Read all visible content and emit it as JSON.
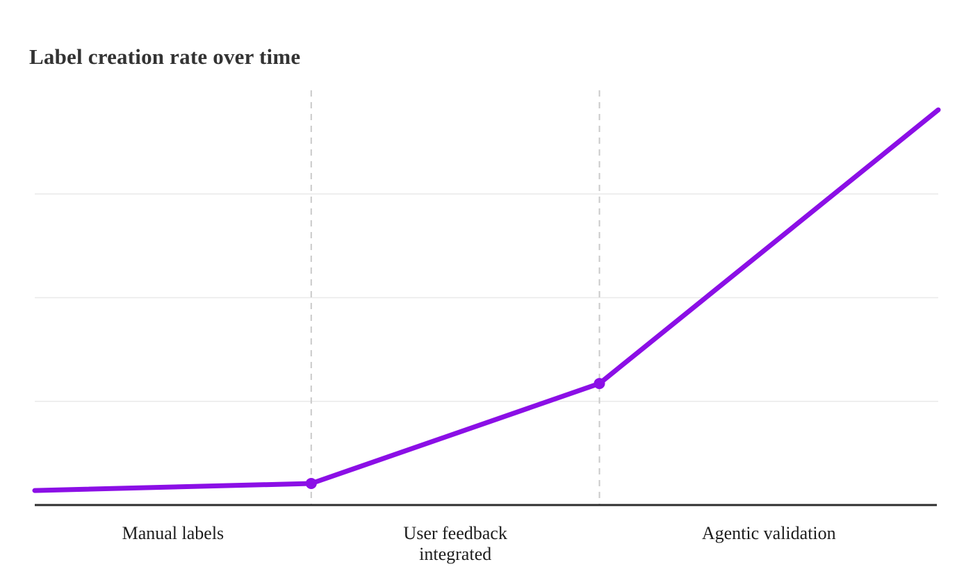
{
  "title": "Label creation rate over time",
  "colors": {
    "line": "#8B0FE6",
    "grid": "#e9e9e9",
    "divider": "#c9c9c9",
    "axis": "#2d2d2d",
    "title_text": "#333333",
    "label_text": "#1d1d1d",
    "background": "#ffffff"
  },
  "chart_data": {
    "type": "line",
    "title": "Label creation rate over time",
    "xlabel": "",
    "ylabel": "",
    "ylim": [
      0,
      100
    ],
    "xlim": [
      0,
      1
    ],
    "grid": true,
    "y_gridlines": [
      25,
      50,
      75
    ],
    "y_tick_labels_shown": false,
    "legend_position": "none",
    "phases": [
      {
        "label": "Manual labels",
        "x_start": 0.0,
        "x_end": 0.306
      },
      {
        "label": "User feedback\nintegrated",
        "x_start": 0.306,
        "x_end": 0.625
      },
      {
        "label": "Agentic validation",
        "x_start": 0.625,
        "x_end": 1.0
      }
    ],
    "phase_divider_x": [
      0.306,
      0.625
    ],
    "series": [
      {
        "name": "Label creation rate",
        "color": "#8B0FE6",
        "stroke_width": 7,
        "marker_radius": 8,
        "points": [
          {
            "x": 0.0,
            "y": 3.5,
            "marker": false
          },
          {
            "x": 0.306,
            "y": 5.2,
            "marker": true
          },
          {
            "x": 0.625,
            "y": 29.3,
            "marker": true
          },
          {
            "x": 1.0,
            "y": 95.3,
            "marker": false
          }
        ]
      }
    ]
  }
}
